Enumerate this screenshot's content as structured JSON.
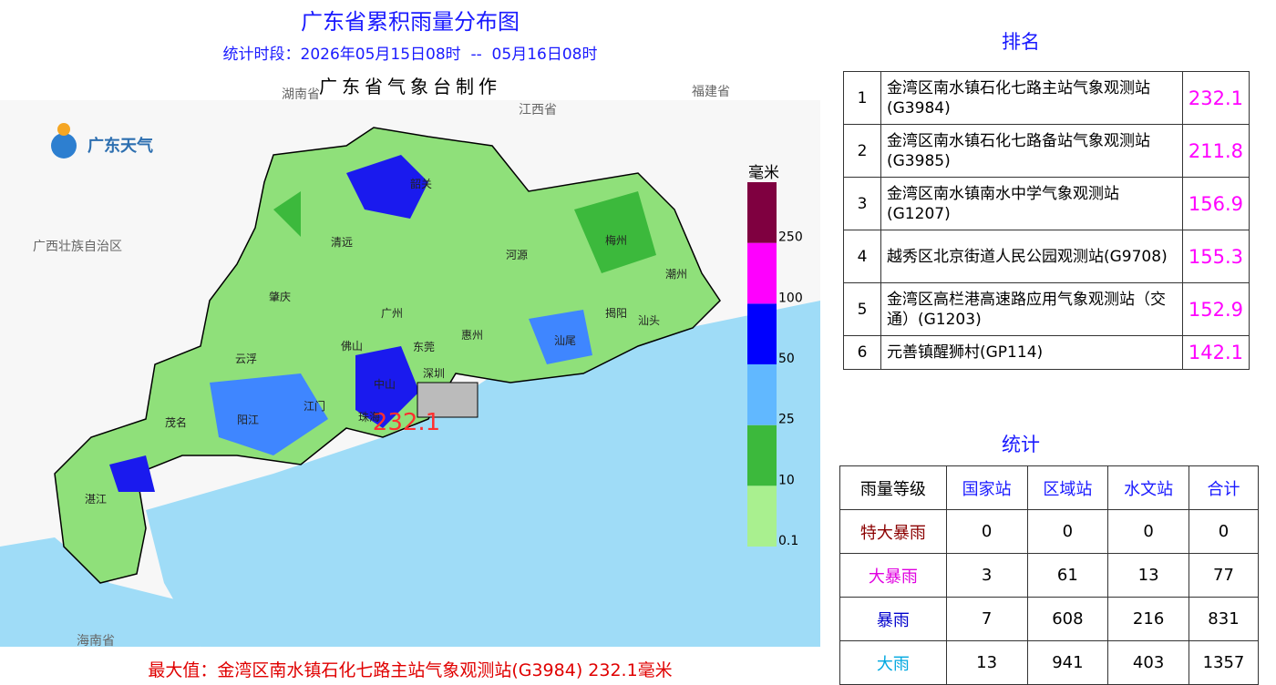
{
  "header": {
    "title": "广东省累积雨量分布图",
    "period": "统计时段：2026年05月15日08时  --  05月16日08时",
    "maker": "广东省气象台制作"
  },
  "logo": "广东天气",
  "map": {
    "regions": [
      "湖南省",
      "江西省",
      "福建省",
      "广西壮族自治区",
      "海南省"
    ],
    "cities": [
      "韶关",
      "清远",
      "河源",
      "梅州",
      "潮州",
      "肇庆",
      "广州",
      "揭阳",
      "汕头",
      "云浮",
      "佛山",
      "东莞",
      "惠州",
      "汕尾",
      "深圳",
      "中山",
      "江门",
      "珠海",
      "阳江",
      "茂名",
      "湛江"
    ],
    "max_label": "232.1"
  },
  "legend": {
    "unit": "毫米",
    "levels": [
      {
        "value": 0.1,
        "color": "#a9f08f"
      },
      {
        "value": 10,
        "color": "#3cb93c"
      },
      {
        "value": 25,
        "color": "#61b8ff"
      },
      {
        "value": 50,
        "color": "#0000fe"
      },
      {
        "value": 100,
        "color": "#fe00fe"
      },
      {
        "value": 250,
        "color": "#7f0040"
      }
    ]
  },
  "footer": "最大值：金湾区南水镇石化七路主站气象观测站(G3984) 232.1毫米",
  "ranking": {
    "title": "排名",
    "rows": [
      [
        1,
        "金湾区南水镇石化七路主站气象观测站(G3984)",
        232.1
      ],
      [
        2,
        "金湾区南水镇石化七路备站气象观测站(G3985)",
        211.8
      ],
      [
        3,
        "金湾区南水镇南水中学气象观测站(G1207)",
        156.9
      ],
      [
        4,
        "越秀区北京街道人民公园观测站(G9708)",
        155.3
      ],
      [
        5,
        "金湾区高栏港高速路应用气象观测站（交通）(G1203)",
        152.9
      ],
      [
        6,
        "元善镇醒狮村(GP114)",
        142.1
      ]
    ]
  },
  "stats": {
    "title": "统计",
    "header": [
      "雨量等级",
      "国家站",
      "区域站",
      "水文站",
      "合计"
    ],
    "rows": [
      [
        "特大暴雨",
        0,
        0,
        0,
        0
      ],
      [
        "大暴雨",
        3,
        61,
        13,
        77
      ],
      [
        "暴雨",
        7,
        608,
        216,
        831
      ],
      [
        "大雨",
        13,
        941,
        403,
        1357
      ]
    ],
    "row_colors": [
      "#8b0000",
      "#e000e0",
      "#0000cc",
      "#00a8e0"
    ]
  }
}
